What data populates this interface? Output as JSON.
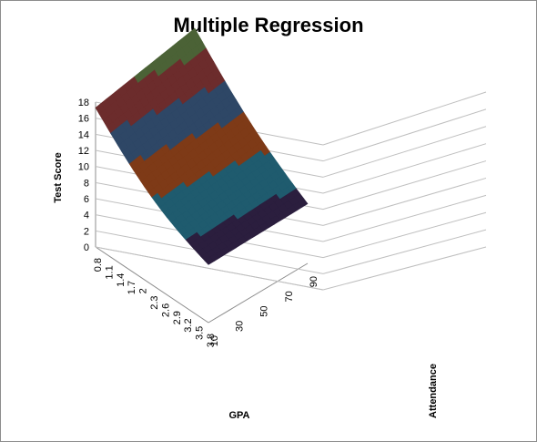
{
  "chart_data": {
    "type": "surface",
    "title": "Multiple Regression",
    "xlabel": "GPA",
    "ylabel": "Attendance",
    "zlabel": "Test Score",
    "x_ticks": [
      "0.8",
      "1.1",
      "1.4",
      "1.7",
      "2",
      "2.3",
      "2.6",
      "2.9",
      "3.2",
      "3.5",
      "3.8"
    ],
    "y_ticks": [
      "10",
      "30",
      "50",
      "70",
      "90"
    ],
    "z_ticks": [
      "0",
      "2",
      "4",
      "6",
      "8",
      "10",
      "12",
      "14",
      "16",
      "18"
    ],
    "zlim": [
      0,
      18
    ],
    "grid": true,
    "legend": "none",
    "band_colors": [
      "#2b1e3e",
      "#1f5b6e",
      "#7e3a17",
      "#2e4766",
      "#6c2c2c",
      "#4b6236"
    ],
    "surface": {
      "gpa_corners": [
        0.8,
        3.8
      ],
      "attendance_corners": [
        10,
        90
      ],
      "z_at_gpa_low_att_low": 17.3,
      "z_at_gpa_low_att_high": 19.8,
      "z_at_gpa_high_att_low": 7.2,
      "z_at_gpa_high_att_high": 7.4,
      "min_z_approx": 6.8
    }
  }
}
